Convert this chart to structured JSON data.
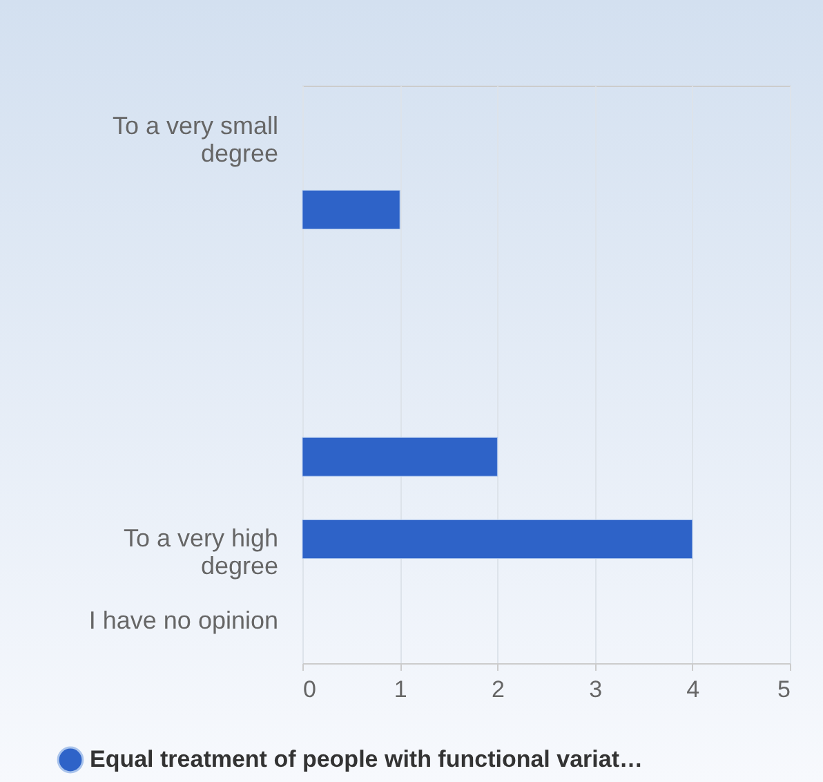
{
  "chart_data": {
    "type": "bar",
    "orientation": "horizontal",
    "categories": [
      "To a very small degree",
      null,
      null,
      null,
      null,
      "To a very high degree",
      "I have no opinion"
    ],
    "series": [
      {
        "name": "Equal treatment of people with functional variat…",
        "color": "#2e63c8",
        "values": [
          null,
          1,
          null,
          null,
          2,
          4,
          null
        ]
      }
    ],
    "xlim": [
      0,
      5
    ],
    "xticks": [
      0,
      1,
      2,
      3,
      4,
      5
    ],
    "grid": "x",
    "legend": "bottom"
  }
}
